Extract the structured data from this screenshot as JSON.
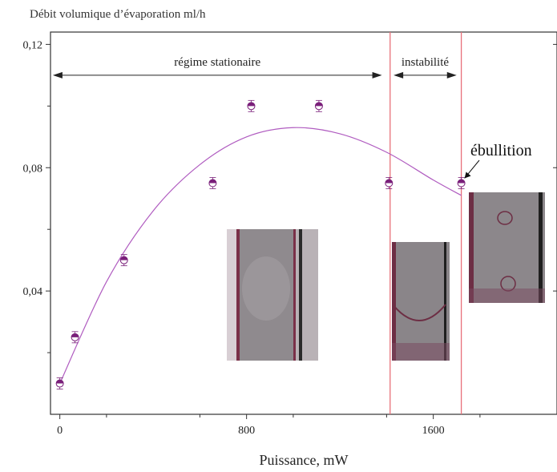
{
  "chart_data": {
    "type": "scatter",
    "title": "Débit volumique d’évaporation ml/h",
    "xlabel": "Puissance, mW",
    "ylabel": "",
    "xlim": [
      -40,
      2130
    ],
    "ylim": [
      0,
      0.124
    ],
    "x_ticks": [
      0,
      800,
      1600
    ],
    "x_tick_labels": [
      "0",
      "800",
      "1600"
    ],
    "y_ticks": [
      0.04,
      0.08,
      0.12
    ],
    "y_tick_labels": [
      "0,04",
      "0,08",
      "0,12"
    ],
    "grid": false,
    "series": [
      {
        "points": [
          {
            "x": 0,
            "y": 0.01
          },
          {
            "x": 65,
            "y": 0.025
          },
          {
            "x": 275,
            "y": 0.05
          },
          {
            "x": 655,
            "y": 0.075
          },
          {
            "x": 820,
            "y": 0.1
          },
          {
            "x": 1110,
            "y": 0.1
          },
          {
            "x": 1410,
            "y": 0.075
          },
          {
            "x": 1720,
            "y": 0.075
          }
        ],
        "color": "#7a1f7a"
      }
    ],
    "fit_curve": {
      "color": "#b05cc0",
      "points": [
        {
          "x": 0,
          "y": 0.01
        },
        {
          "x": 200,
          "y": 0.043
        },
        {
          "x": 400,
          "y": 0.066
        },
        {
          "x": 600,
          "y": 0.081
        },
        {
          "x": 800,
          "y": 0.09
        },
        {
          "x": 1000,
          "y": 0.093
        },
        {
          "x": 1200,
          "y": 0.091
        },
        {
          "x": 1400,
          "y": 0.085
        },
        {
          "x": 1600,
          "y": 0.076
        },
        {
          "x": 1720,
          "y": 0.071
        }
      ]
    },
    "vertical_lines": [
      {
        "x": 1415,
        "color": "#e8707a"
      },
      {
        "x": 1720,
        "color": "#e8707a"
      }
    ],
    "regions": [
      {
        "label": "régime stationaire",
        "x_start": -30,
        "x_end": 1380,
        "y": 0.11
      },
      {
        "label": "instabilité",
        "x_start": 1430,
        "x_end": 1700,
        "y": 0.11
      }
    ],
    "annotations": [
      {
        "text": "ébullition",
        "target_x": 1720,
        "target_y": 0.075
      }
    ]
  }
}
